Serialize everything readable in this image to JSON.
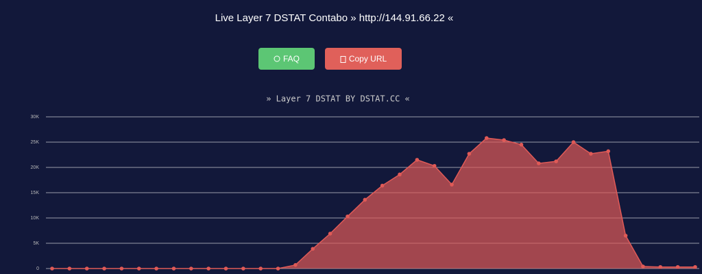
{
  "header": {
    "title": "Live Layer 7 DSTAT Contabo » http://144.91.66.22 «"
  },
  "buttons": [
    {
      "label": "FAQ"
    },
    {
      "label": "Copy URL"
    }
  ],
  "chart_data": {
    "type": "area",
    "title": "» Layer 7 DSTAT BY DSTAT.CC «",
    "categories": [
      null,
      null,
      null,
      null,
      null,
      null,
      null,
      null,
      null,
      null,
      null,
      null,
      null,
      null,
      null,
      null,
      null,
      null,
      null,
      null,
      null,
      null,
      null,
      null,
      null,
      null,
      null,
      null,
      null,
      null,
      null,
      null,
      null,
      null,
      null,
      null,
      null,
      null
    ],
    "values": [
      0,
      0,
      0,
      0,
      0,
      0,
      0,
      0,
      0,
      0,
      0,
      0,
      0,
      0,
      700,
      3900,
      6900,
      10300,
      13600,
      16400,
      18600,
      21500,
      20300,
      16600,
      22700,
      25800,
      25400,
      24500,
      20800,
      21200,
      25000,
      22700,
      23200,
      6500,
      400,
      300,
      300,
      300
    ],
    "color": "#e05a57",
    "ylim": [
      0,
      30000
    ],
    "yticks": [
      0,
      {
        "value": 5000,
        "label": "5K"
      },
      {
        "value": 10000,
        "label": "10K"
      },
      {
        "value": 15000,
        "label": "15K"
      },
      {
        "value": 20000,
        "label": "20K"
      },
      {
        "value": 25000,
        "label": "25K"
      },
      {
        "value": 30000,
        "label": "30K"
      }
    ],
    "grid": true
  }
}
